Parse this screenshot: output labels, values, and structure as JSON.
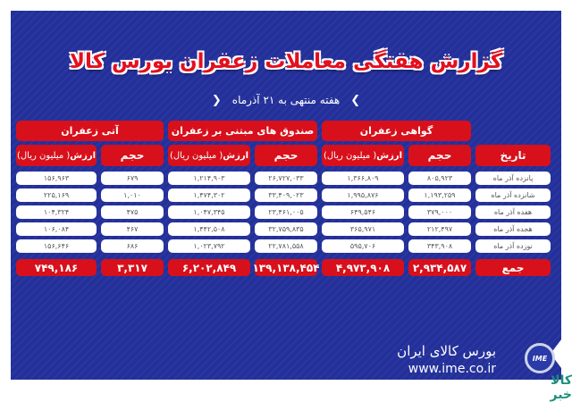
{
  "title": "گزارش هفتگی معاملات زعفران بورس کالا",
  "subtitle": "هفته منتهی به ۲۱ آذرماه",
  "groups": [
    "گواهی زعفران",
    "صندوق های مبتنی بر زعفران",
    "آتی زعفران"
  ],
  "headers": {
    "date": "تاریخ",
    "volume": "حجم",
    "value_bold": "ارزش",
    "value_unit": "( میلیون ریال)"
  },
  "rows": [
    {
      "date": "پانزده آذر ماه",
      "cert_vol": "۸۰۵,۹۲۳",
      "cert_val": "۱,۳۶۶,۸۰۹",
      "fund_vol": "۲۶,۷۲۷,۰۳۳",
      "fund_val": "۱,۲۱۴,۹۰۳",
      "fut_vol": "۶۷۹",
      "fut_val": "۱۵۶,۹۶۳"
    },
    {
      "date": "شانزده آذر ماه",
      "cert_vol": "۱,۱۹۳,۲۵۹",
      "cert_val": "۱,۹۹۵,۸۷۶",
      "fund_vol": "۳۳,۴۰۹,۰۲۳",
      "fund_val": "۱,۴۷۴,۳۰۲",
      "fut_vol": "۱,۰۱۰",
      "fut_val": "۲۲۵,۱۶۹"
    },
    {
      "date": "هفده آذر ماه",
      "cert_vol": "۳۷۹,۰۰۰",
      "cert_val": "۶۴۹,۵۴۶",
      "fund_vol": "۲۳,۴۶۱,۰۰۵",
      "fund_val": "۱,۰۴۷,۳۴۵",
      "fut_vol": "۴۷۵",
      "fut_val": "۱۰۴,۳۲۴"
    },
    {
      "date": "هجده آذر ماه",
      "cert_vol": "۲۱۲,۴۹۷",
      "cert_val": "۳۶۵,۹۷۱",
      "fund_vol": "۳۲,۷۵۹,۸۳۵",
      "fund_val": "۱,۴۴۲,۵۰۸",
      "fut_vol": "۴۶۷",
      "fut_val": "۱۰۶,۰۸۴"
    },
    {
      "date": "نوزده آذر ماه",
      "cert_vol": "۳۴۳,۹۰۸",
      "cert_val": "۵۹۵,۷۰۶",
      "fund_vol": "۲۲,۷۸۱,۵۵۸",
      "fund_val": "۱,۰۲۳,۷۹۲",
      "fut_vol": "۶۸۶",
      "fut_val": "۱۵۶,۶۴۶"
    }
  ],
  "total": {
    "date": "جمع",
    "cert_vol": "۲,۹۳۴,۵۸۷",
    "cert_val": "۴,۹۷۳,۹۰۸",
    "fund_vol": "۱۳۹,۱۳۸,۴۵۴",
    "fund_val": "۶,۲۰۲,۸۴۹",
    "fut_vol": "۳,۳۱۷",
    "fut_val": "۷۴۹,۱۸۶"
  },
  "footer": {
    "brand": "بورس کالای ایران",
    "url": "www.ime.co.ir",
    "logo_text": "IME",
    "watermark": "کالا خبر"
  },
  "colors": {
    "background": "#23309a",
    "accent": "#d8101c"
  }
}
